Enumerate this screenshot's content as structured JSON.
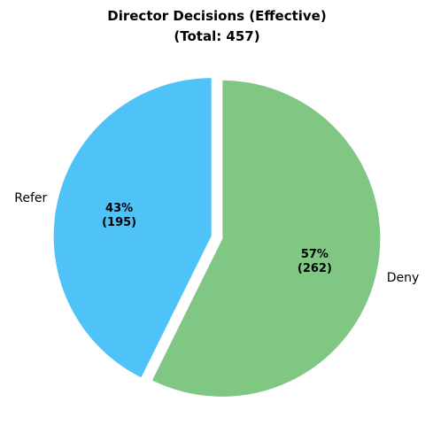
{
  "chart_data": {
    "type": "pie",
    "title": "Director Decisions (Effective)",
    "subtitle": "(Total: 457)",
    "slices": [
      {
        "label": "Refer",
        "value": 195,
        "percent_label": "43%",
        "count_label": "(195)",
        "color": "#4FC3F7"
      },
      {
        "label": "Deny",
        "value": 262,
        "percent_label": "57%",
        "count_label": "(262)",
        "color": "#81C784"
      }
    ],
    "start_angle_deg": 90,
    "direction": "counterclockwise",
    "exploded": true,
    "legend": "none"
  }
}
